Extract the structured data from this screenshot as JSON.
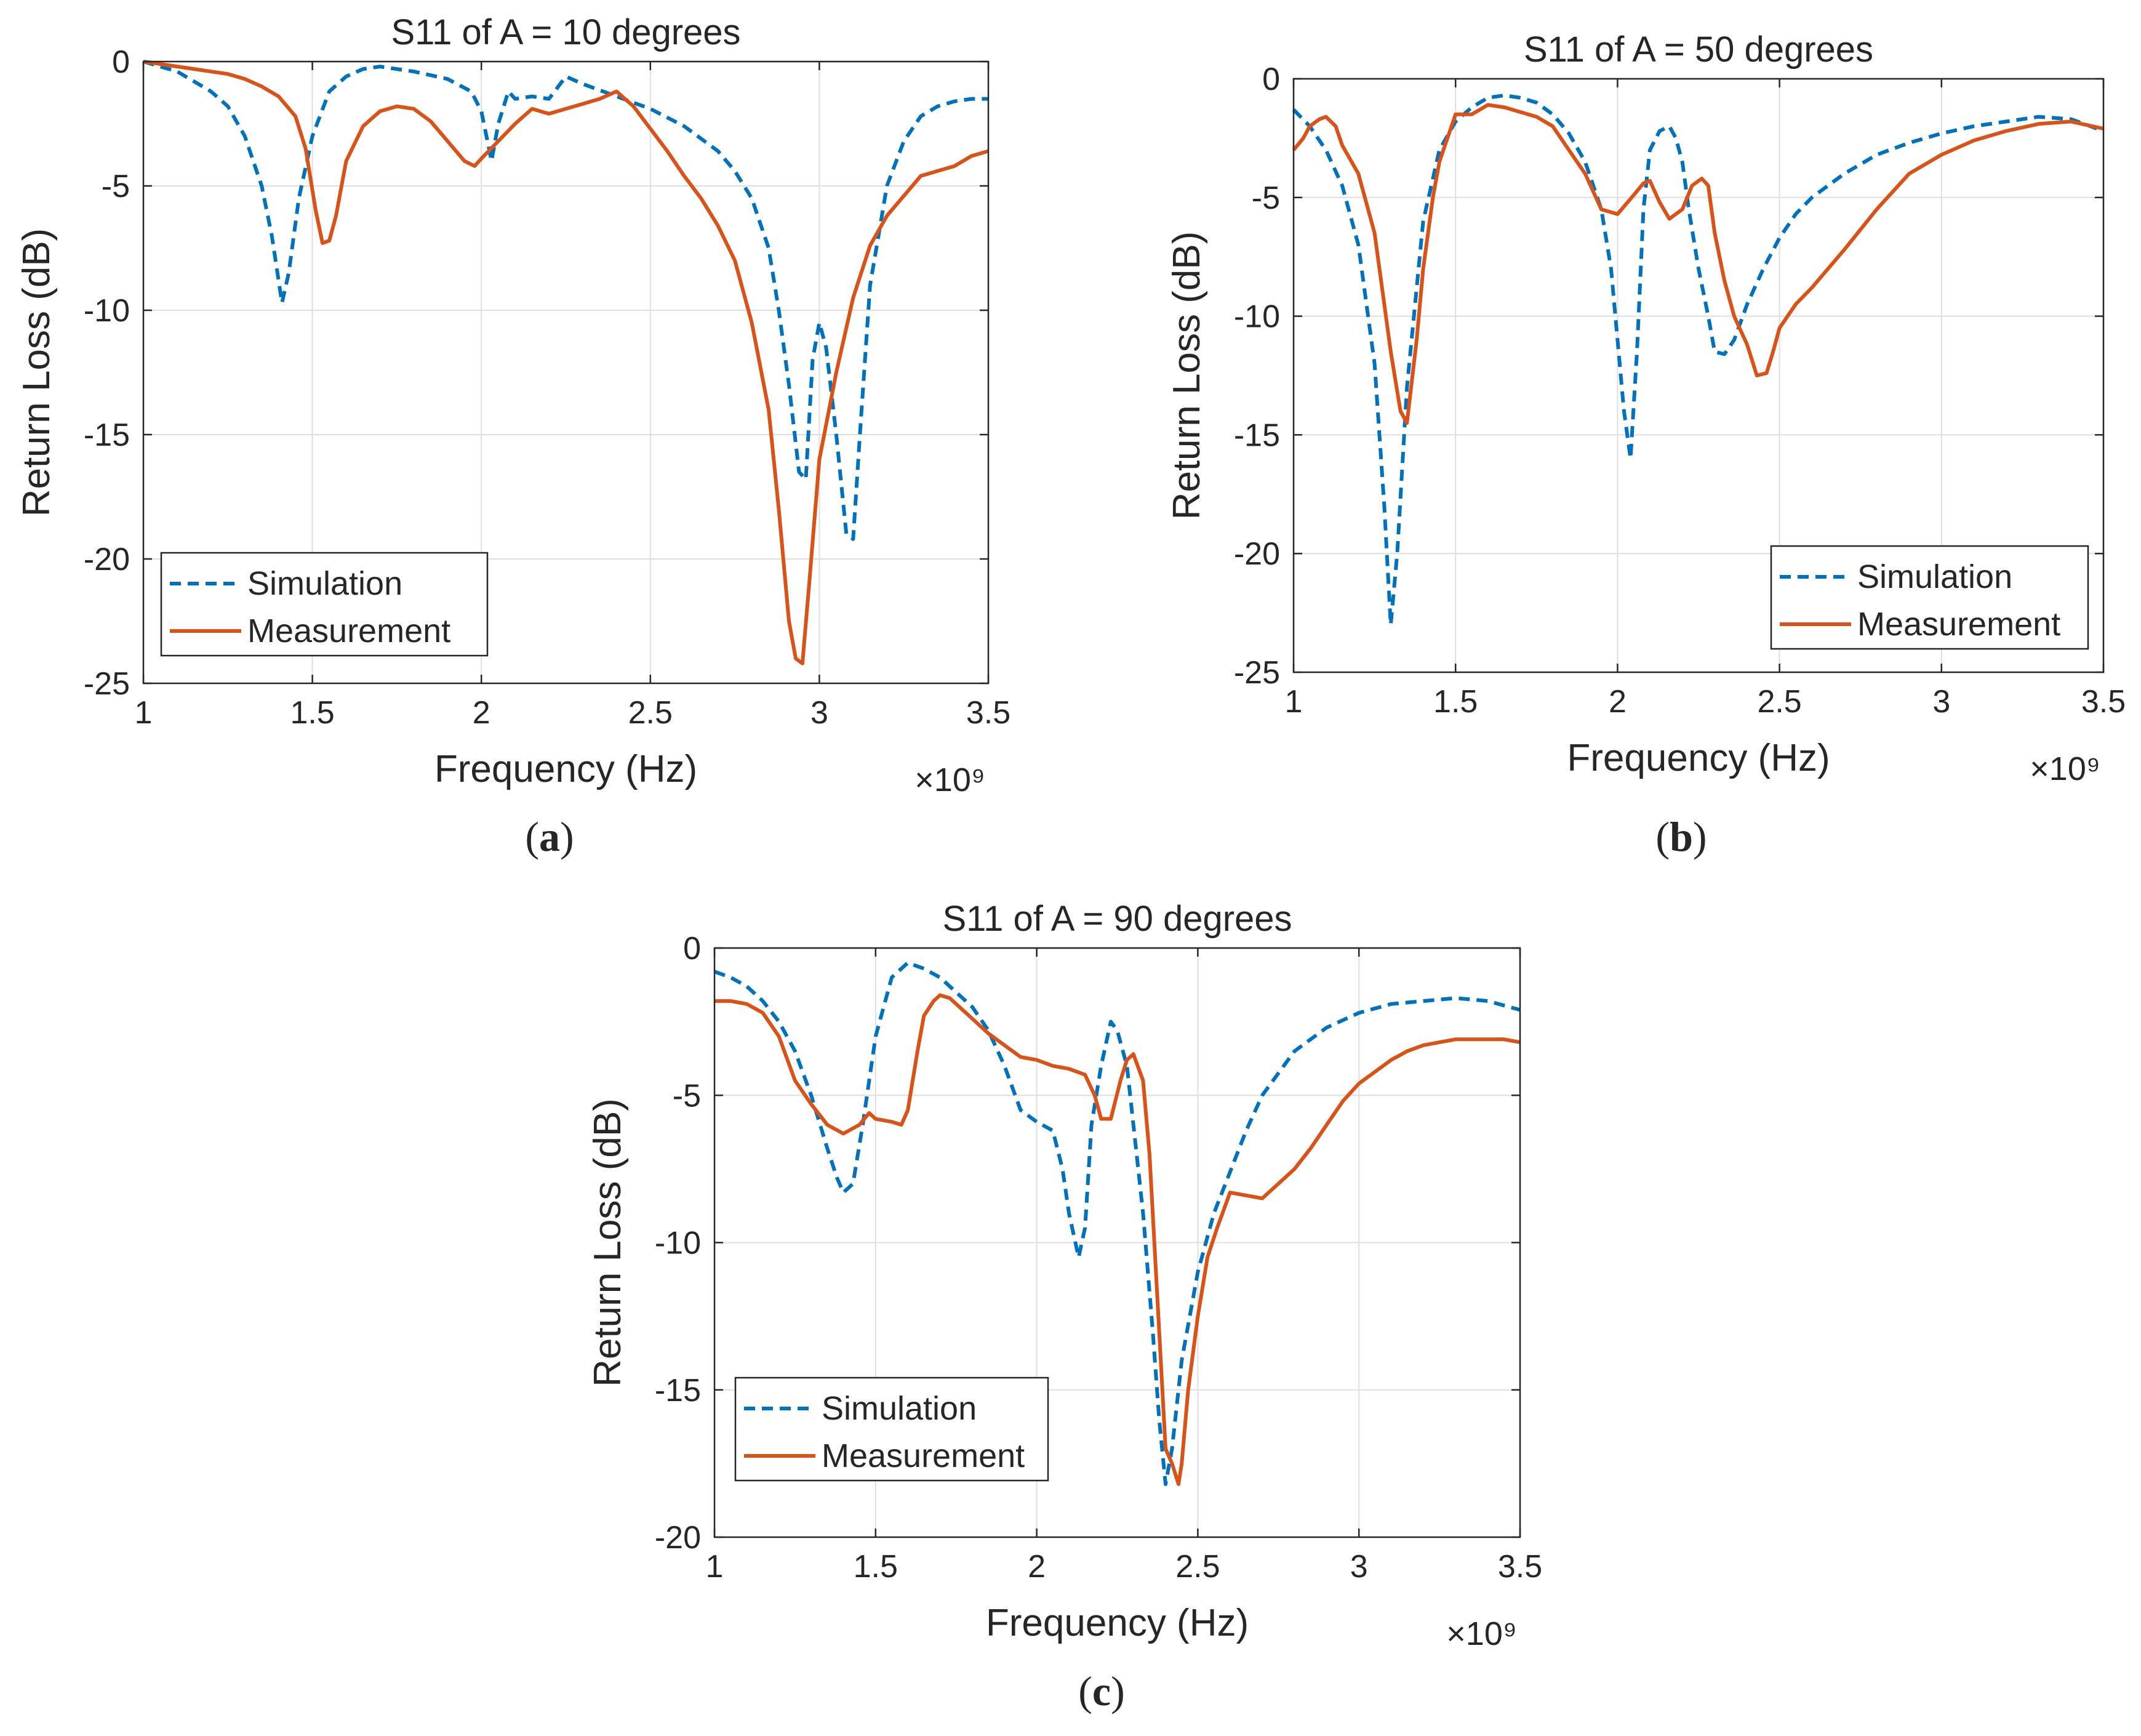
{
  "chart_data": [
    {
      "type": "line",
      "panel_label": "a",
      "title": "S11 of A = 10 degrees",
      "xlabel": "Frequency (Hz)",
      "ylabel": "Return Loss (dB)",
      "x_exponent": "×10⁹",
      "xlim": [
        1,
        3.5
      ],
      "ylim": [
        -25,
        0
      ],
      "xticks": [
        1,
        1.5,
        2,
        2.5,
        3,
        3.5
      ],
      "xtick_labels": [
        "1",
        "1.5",
        "2",
        "2.5",
        "3",
        "3.5"
      ],
      "yticks": [
        0,
        -5,
        -10,
        -15,
        -20,
        -25
      ],
      "ytick_labels": [
        "0",
        "-5",
        "-10",
        "-15",
        "-20",
        "-25"
      ],
      "grid": true,
      "legend_position": "lower-left",
      "series": [
        {
          "name": "Simulation",
          "style": "dashed",
          "color": "#0072BD",
          "x": [
            1.0,
            1.05,
            1.1,
            1.15,
            1.2,
            1.25,
            1.3,
            1.35,
            1.38,
            1.41,
            1.43,
            1.46,
            1.5,
            1.55,
            1.6,
            1.65,
            1.7,
            1.8,
            1.9,
            1.97,
            2.0,
            2.03,
            2.05,
            2.08,
            2.1,
            2.15,
            2.2,
            2.25,
            2.3,
            2.4,
            2.5,
            2.6,
            2.7,
            2.75,
            2.8,
            2.85,
            2.88,
            2.91,
            2.94,
            2.96,
            2.98,
            3.0,
            3.02,
            3.05,
            3.08,
            3.1,
            3.12,
            3.15,
            3.2,
            3.25,
            3.3,
            3.35,
            3.4,
            3.45,
            3.5
          ],
          "values": [
            0,
            -0.2,
            -0.4,
            -0.8,
            -1.2,
            -1.8,
            -3.0,
            -5.0,
            -7.0,
            -9.7,
            -8.5,
            -5.5,
            -3.0,
            -1.2,
            -0.6,
            -0.3,
            -0.2,
            -0.4,
            -0.7,
            -1.2,
            -2.0,
            -4.0,
            -2.5,
            -1.2,
            -1.5,
            -1.4,
            -1.5,
            -0.6,
            -0.9,
            -1.4,
            -1.9,
            -2.6,
            -3.6,
            -4.4,
            -5.5,
            -7.5,
            -10.0,
            -13.0,
            -16.5,
            -16.8,
            -12.0,
            -10.5,
            -11.5,
            -15.0,
            -19.0,
            -19.2,
            -15.0,
            -9.0,
            -5.0,
            -3.2,
            -2.2,
            -1.8,
            -1.6,
            -1.5,
            -1.5
          ]
        },
        {
          "name": "Measurement",
          "style": "solid",
          "color": "#D95319",
          "x": [
            1.0,
            1.05,
            1.1,
            1.15,
            1.2,
            1.25,
            1.3,
            1.35,
            1.4,
            1.45,
            1.48,
            1.51,
            1.53,
            1.55,
            1.57,
            1.6,
            1.65,
            1.7,
            1.75,
            1.8,
            1.85,
            1.9,
            1.95,
            1.98,
            2.0,
            2.05,
            2.1,
            2.15,
            2.2,
            2.25,
            2.3,
            2.35,
            2.4,
            2.45,
            2.5,
            2.55,
            2.6,
            2.65,
            2.7,
            2.75,
            2.8,
            2.85,
            2.88,
            2.91,
            2.93,
            2.95,
            2.97,
            3.0,
            3.05,
            3.1,
            3.15,
            3.2,
            3.25,
            3.3,
            3.35,
            3.4,
            3.45,
            3.5
          ],
          "values": [
            0,
            -0.1,
            -0.2,
            -0.3,
            -0.4,
            -0.5,
            -0.7,
            -1.0,
            -1.4,
            -2.2,
            -3.5,
            -6.0,
            -7.3,
            -7.2,
            -6.2,
            -4.0,
            -2.6,
            -2.0,
            -1.8,
            -1.9,
            -2.4,
            -3.2,
            -4.0,
            -4.2,
            -3.9,
            -3.2,
            -2.5,
            -1.9,
            -2.1,
            -1.9,
            -1.7,
            -1.5,
            -1.2,
            -1.8,
            -2.7,
            -3.6,
            -4.6,
            -5.5,
            -6.6,
            -8.0,
            -10.5,
            -14.0,
            -18.0,
            -22.5,
            -24.0,
            -24.2,
            -21.0,
            -16.0,
            -12.5,
            -9.5,
            -7.4,
            -6.2,
            -5.4,
            -4.6,
            -4.4,
            -4.2,
            -3.8,
            -3.6
          ]
        }
      ]
    },
    {
      "type": "line",
      "panel_label": "b",
      "title": "S11 of A = 50 degrees",
      "xlabel": "Frequency (Hz)",
      "ylabel": "Return Loss (dB)",
      "x_exponent": "×10⁹",
      "xlim": [
        1,
        3.5
      ],
      "ylim": [
        -25,
        0
      ],
      "xticks": [
        1,
        1.5,
        2,
        2.5,
        3,
        3.5
      ],
      "xtick_labels": [
        "1",
        "1.5",
        "2",
        "2.5",
        "3",
        "3.5"
      ],
      "yticks": [
        0,
        -5,
        -10,
        -15,
        -20,
        -25
      ],
      "ytick_labels": [
        "0",
        "-5",
        "-10",
        "-15",
        "-20",
        "-25"
      ],
      "grid": true,
      "legend_position": "lower-right",
      "series": [
        {
          "name": "Simulation",
          "style": "dashed",
          "color": "#0072BD",
          "x": [
            1.0,
            1.05,
            1.1,
            1.15,
            1.2,
            1.25,
            1.28,
            1.3,
            1.32,
            1.35,
            1.4,
            1.45,
            1.5,
            1.55,
            1.6,
            1.65,
            1.7,
            1.75,
            1.8,
            1.85,
            1.9,
            1.95,
            1.98,
            2.0,
            2.02,
            2.04,
            2.06,
            2.08,
            2.1,
            2.13,
            2.16,
            2.18,
            2.2,
            2.22,
            2.25,
            2.28,
            2.3,
            2.33,
            2.36,
            2.4,
            2.45,
            2.5,
            2.55,
            2.6,
            2.7,
            2.8,
            2.9,
            3.0,
            3.1,
            3.2,
            3.3,
            3.4,
            3.5
          ],
          "values": [
            -1.3,
            -2.0,
            -3.0,
            -4.5,
            -7.0,
            -12.0,
            -18.0,
            -23.0,
            -20.0,
            -13.0,
            -6.0,
            -3.0,
            -1.8,
            -1.2,
            -0.8,
            -0.7,
            -0.8,
            -1.0,
            -1.5,
            -2.3,
            -3.5,
            -5.5,
            -8.0,
            -11.0,
            -14.0,
            -16.0,
            -11.5,
            -5.5,
            -3.0,
            -2.2,
            -2.0,
            -2.5,
            -3.5,
            -5.5,
            -8.0,
            -10.0,
            -11.5,
            -11.6,
            -11.0,
            -9.5,
            -8.0,
            -6.7,
            -5.7,
            -5.0,
            -4.0,
            -3.2,
            -2.7,
            -2.3,
            -2.0,
            -1.8,
            -1.6,
            -1.7,
            -2.2
          ]
        },
        {
          "name": "Measurement",
          "style": "solid",
          "color": "#D95319",
          "x": [
            1.0,
            1.03,
            1.05,
            1.08,
            1.1,
            1.13,
            1.15,
            1.2,
            1.25,
            1.28,
            1.3,
            1.33,
            1.35,
            1.38,
            1.4,
            1.43,
            1.45,
            1.5,
            1.55,
            1.6,
            1.65,
            1.7,
            1.75,
            1.8,
            1.85,
            1.9,
            1.95,
            2.0,
            2.05,
            2.08,
            2.1,
            2.13,
            2.16,
            2.2,
            2.23,
            2.26,
            2.28,
            2.3,
            2.33,
            2.36,
            2.4,
            2.43,
            2.46,
            2.48,
            2.5,
            2.55,
            2.6,
            2.7,
            2.8,
            2.9,
            3.0,
            3.1,
            3.2,
            3.3,
            3.4,
            3.5
          ],
          "values": [
            -3.0,
            -2.5,
            -2.0,
            -1.7,
            -1.6,
            -2.0,
            -2.8,
            -4.0,
            -6.5,
            -9.5,
            -11.5,
            -14.0,
            -14.5,
            -11.0,
            -8.0,
            -5.0,
            -3.5,
            -1.5,
            -1.5,
            -1.1,
            -1.2,
            -1.4,
            -1.6,
            -2.0,
            -3.0,
            -4.0,
            -5.5,
            -5.7,
            -4.9,
            -4.4,
            -4.3,
            -5.2,
            -5.9,
            -5.5,
            -4.5,
            -4.2,
            -4.5,
            -6.5,
            -8.5,
            -10.0,
            -11.2,
            -12.5,
            -12.4,
            -11.5,
            -10.5,
            -9.5,
            -8.8,
            -7.2,
            -5.5,
            -4.0,
            -3.2,
            -2.6,
            -2.2,
            -1.9,
            -1.8,
            -2.1
          ]
        }
      ]
    },
    {
      "type": "line",
      "panel_label": "c",
      "title": "S11 of A = 90 degrees",
      "xlabel": "Frequency (Hz)",
      "ylabel": "Return Loss (dB)",
      "x_exponent": "×10⁹",
      "xlim": [
        1,
        3.5
      ],
      "ylim": [
        -20,
        0
      ],
      "xticks": [
        1,
        1.5,
        2,
        2.5,
        3,
        3.5
      ],
      "xtick_labels": [
        "1",
        "1.5",
        "2",
        "2.5",
        "3",
        "3.5"
      ],
      "yticks": [
        0,
        -5,
        -10,
        -15,
        -20
      ],
      "ytick_labels": [
        "0",
        "-5",
        "-10",
        "-15",
        "-20"
      ],
      "grid": true,
      "legend_position": "lower-left",
      "series": [
        {
          "name": "Simulation",
          "style": "dashed",
          "color": "#0072BD",
          "x": [
            1.0,
            1.05,
            1.1,
            1.15,
            1.2,
            1.25,
            1.3,
            1.35,
            1.38,
            1.4,
            1.43,
            1.46,
            1.5,
            1.55,
            1.6,
            1.65,
            1.7,
            1.75,
            1.8,
            1.85,
            1.9,
            1.95,
            2.0,
            2.05,
            2.08,
            2.1,
            2.13,
            2.15,
            2.17,
            2.2,
            2.23,
            2.25,
            2.28,
            2.3,
            2.33,
            2.36,
            2.38,
            2.4,
            2.42,
            2.45,
            2.5,
            2.55,
            2.6,
            2.65,
            2.7,
            2.8,
            2.9,
            3.0,
            3.1,
            3.2,
            3.3,
            3.4,
            3.5
          ],
          "values": [
            -0.8,
            -1.0,
            -1.3,
            -1.8,
            -2.5,
            -3.5,
            -5.0,
            -6.8,
            -7.8,
            -8.3,
            -8.0,
            -6.0,
            -3.0,
            -1.0,
            -0.5,
            -0.7,
            -1.0,
            -1.5,
            -2.0,
            -2.8,
            -4.0,
            -5.5,
            -5.9,
            -6.2,
            -7.5,
            -9.0,
            -10.5,
            -9.5,
            -6.0,
            -4.0,
            -2.5,
            -2.8,
            -4.0,
            -6.0,
            -9.0,
            -13.0,
            -16.0,
            -18.2,
            -17.0,
            -14.0,
            -11.0,
            -9.0,
            -7.6,
            -6.2,
            -5.0,
            -3.5,
            -2.7,
            -2.2,
            -1.9,
            -1.8,
            -1.7,
            -1.8,
            -2.1
          ]
        },
        {
          "name": "Measurement",
          "style": "solid",
          "color": "#D95319",
          "x": [
            1.0,
            1.05,
            1.1,
            1.15,
            1.2,
            1.25,
            1.3,
            1.35,
            1.4,
            1.45,
            1.48,
            1.5,
            1.55,
            1.58,
            1.6,
            1.63,
            1.65,
            1.68,
            1.7,
            1.73,
            1.75,
            1.8,
            1.85,
            1.9,
            1.95,
            2.0,
            2.05,
            2.1,
            2.15,
            2.18,
            2.2,
            2.23,
            2.26,
            2.28,
            2.3,
            2.33,
            2.35,
            2.38,
            2.4,
            2.42,
            2.44,
            2.45,
            2.47,
            2.5,
            2.53,
            2.56,
            2.6,
            2.65,
            2.7,
            2.75,
            2.8,
            2.85,
            2.9,
            2.95,
            3.0,
            3.05,
            3.1,
            3.15,
            3.2,
            3.25,
            3.3,
            3.35,
            3.4,
            3.45,
            3.5
          ],
          "values": [
            -1.8,
            -1.8,
            -1.9,
            -2.2,
            -3.0,
            -4.5,
            -5.3,
            -6.0,
            -6.3,
            -6.0,
            -5.6,
            -5.8,
            -5.9,
            -6.0,
            -5.5,
            -3.5,
            -2.3,
            -1.8,
            -1.6,
            -1.7,
            -1.9,
            -2.4,
            -2.9,
            -3.3,
            -3.7,
            -3.8,
            -4.0,
            -4.1,
            -4.3,
            -5.0,
            -5.8,
            -5.8,
            -4.5,
            -3.8,
            -3.6,
            -4.5,
            -7.0,
            -13.0,
            -17.0,
            -17.5,
            -18.2,
            -17.5,
            -15.0,
            -12.5,
            -10.5,
            -9.5,
            -8.3,
            -8.4,
            -8.5,
            -8.0,
            -7.5,
            -6.8,
            -6.0,
            -5.2,
            -4.6,
            -4.2,
            -3.8,
            -3.5,
            -3.3,
            -3.2,
            -3.1,
            -3.1,
            -3.1,
            -3.1,
            -3.2
          ]
        }
      ]
    }
  ]
}
